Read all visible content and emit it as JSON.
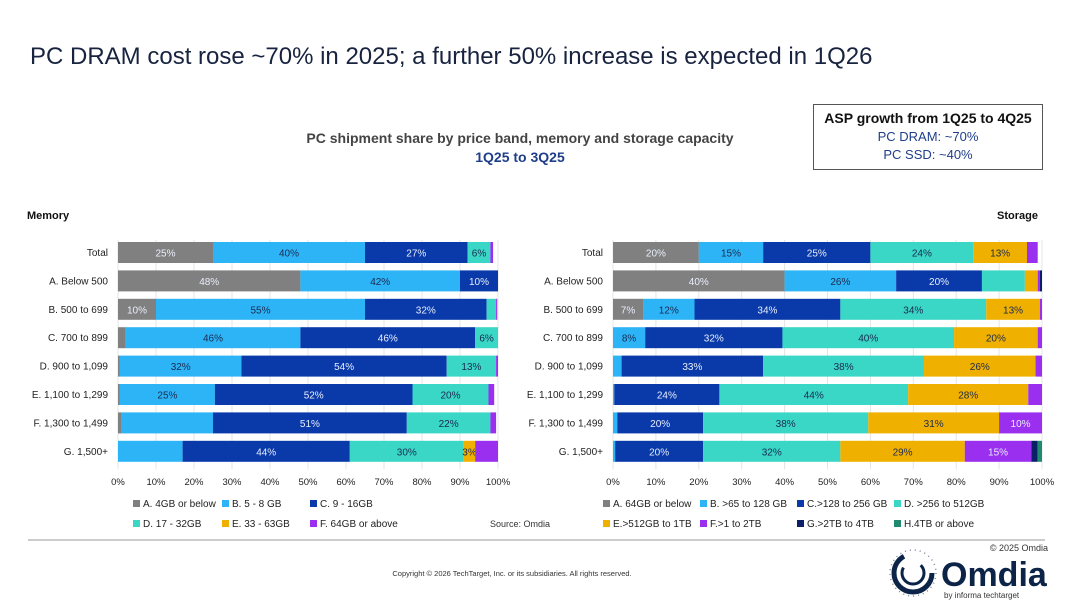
{
  "title": "PC DRAM cost rose ~70% in 2025; a further 50% increase is expected in 1Q26",
  "subtitle": "PC shipment share by price band, memory and storage capacity",
  "period": "1Q25 to 3Q25",
  "asp_box": {
    "heading": "ASP growth from 1Q25 to 4Q25",
    "dram": "PC DRAM: ~70%",
    "ssd": "PC SSD: ~40%"
  },
  "source": "Source: Omdia",
  "copyright": "Copyright © 2026 TechTarget, Inc. or its subsidiaries. All rights reserved.",
  "omdia_copyright": "© 2025 Omdia",
  "logo": {
    "name": "Omdia",
    "tagline": "by informa techtarget"
  },
  "chart_data": [
    {
      "type": "bar",
      "orientation": "horizontal-stacked-100",
      "title": "Memory",
      "categories": [
        "Total",
        "A. Below 500",
        "B. 500 to 699",
        "C. 700 to 899",
        "D. 900 to 1,099",
        "E. 1,100 to 1,299",
        "F. 1,300 to 1,499",
        "G. 1,500+"
      ],
      "xlim": [
        0,
        100
      ],
      "xticks": [
        "0%",
        "10%",
        "20%",
        "30%",
        "40%",
        "50%",
        "60%",
        "70%",
        "80%",
        "90%",
        "100%"
      ],
      "grid": true,
      "legend_placement": "bottom",
      "series": [
        {
          "name": "A. 4GB or below",
          "color": "#808080",
          "values": [
            25,
            48,
            10,
            2,
            0.5,
            0.5,
            1,
            0
          ]
        },
        {
          "name": "B. 5 - 8 GB",
          "color": "#2db4f6",
          "values": [
            40,
            42,
            55,
            46,
            32,
            25,
            24,
            17
          ]
        },
        {
          "name": "C. 9 - 16GB",
          "color": "#0a3aaa",
          "values": [
            27,
            10,
            32,
            46,
            54,
            52,
            51,
            44
          ]
        },
        {
          "name": "D. 17 - 32GB",
          "color": "#3ad6c6",
          "values": [
            6,
            0,
            2.5,
            6,
            13,
            20,
            22,
            30
          ]
        },
        {
          "name": "E. 33 - 63GB",
          "color": "#f0b000",
          "values": [
            0,
            0,
            0,
            0,
            0,
            0,
            0,
            3
          ]
        },
        {
          "name": "F. 64GB or above",
          "color": "#9a2ff0",
          "values": [
            0.7,
            0,
            0.3,
            0,
            0.5,
            1.5,
            1.5,
            6
          ]
        }
      ],
      "labels": [
        [
          "25%",
          "40%",
          "27%",
          "6%",
          "",
          ""
        ],
        [
          "48%",
          "42%",
          "10%",
          "",
          "",
          ""
        ],
        [
          "10%",
          "55%",
          "32%",
          "",
          "",
          ""
        ],
        [
          "",
          "46%",
          "46%",
          "6%",
          "",
          ""
        ],
        [
          "",
          "32%",
          "54%",
          "13%",
          "",
          ""
        ],
        [
          "",
          "25%",
          "52%",
          "20%",
          "",
          ""
        ],
        [
          "",
          "",
          "51%",
          "22%",
          "",
          ""
        ],
        [
          "",
          "",
          "44%",
          "30%",
          "3%",
          ""
        ]
      ]
    },
    {
      "type": "bar",
      "orientation": "horizontal-stacked-100",
      "title": "Storage",
      "categories": [
        "Total",
        "A. Below 500",
        "B. 500 to 699",
        "C. 700 to 899",
        "D. 900 to 1,099",
        "E. 1,100 to 1,299",
        "F. 1,300 to 1,499",
        "G. 1,500+"
      ],
      "xlim": [
        0,
        100
      ],
      "xticks": [
        "0%",
        "10%",
        "20%",
        "30%",
        "40%",
        "50%",
        "60%",
        "70%",
        "80%",
        "90%",
        "100%"
      ],
      "grid": true,
      "legend_placement": "bottom",
      "series": [
        {
          "name": "A. 64GB or below",
          "color": "#808080",
          "values": [
            20,
            40,
            7,
            0,
            0,
            0,
            0,
            0
          ]
        },
        {
          "name": "B. >65 to 128 GB",
          "color": "#2db4f6",
          "values": [
            15,
            26,
            12,
            7.5,
            2,
            0.3,
            1,
            0.5
          ]
        },
        {
          "name": "C.>128 to 256 GB",
          "color": "#0a3aaa",
          "values": [
            25,
            20,
            34,
            32,
            33,
            24.5,
            20,
            20.5
          ]
        },
        {
          "name": "D. >256 to 512GB",
          "color": "#3ad6c6",
          "values": [
            24,
            10,
            34,
            40,
            37.5,
            44,
            38.5,
            32
          ]
        },
        {
          "name": "E.>512GB to 1TB",
          "color": "#f0b000",
          "values": [
            12.5,
            3,
            12.5,
            19.5,
            26,
            28,
            30.5,
            29
          ]
        },
        {
          "name": "F.>1 to 2TB",
          "color": "#9a2ff0",
          "values": [
            2.5,
            0.5,
            0.5,
            1,
            1.5,
            3.2,
            10,
            15.5
          ]
        },
        {
          "name": "G.>2TB to 4TB",
          "color": "#0b1f66",
          "values": [
            0,
            0.5,
            0,
            0,
            0,
            0,
            0,
            1.5
          ]
        },
        {
          "name": "H.4TB or above",
          "color": "#1f8a70",
          "values": [
            0,
            0,
            0,
            0,
            0,
            0,
            0,
            1
          ]
        }
      ],
      "labels": [
        [
          "20%",
          "15%",
          "25%",
          "24%",
          "13%",
          "",
          "",
          ""
        ],
        [
          "40%",
          "26%",
          "20%",
          "",
          "",
          "",
          "",
          ""
        ],
        [
          "7%",
          "12%",
          "34%",
          "34%",
          "13%",
          "",
          "",
          ""
        ],
        [
          "",
          "8%",
          "32%",
          "40%",
          "20%",
          "",
          "",
          ""
        ],
        [
          "",
          "",
          "33%",
          "38%",
          "26%",
          "",
          "",
          ""
        ],
        [
          "",
          "",
          "24%",
          "44%",
          "28%",
          "",
          "",
          ""
        ],
        [
          "",
          "",
          "20%",
          "38%",
          "31%",
          "10%",
          "",
          ""
        ],
        [
          "",
          "",
          "20%",
          "32%",
          "29%",
          "15%",
          "",
          ""
        ]
      ]
    }
  ]
}
